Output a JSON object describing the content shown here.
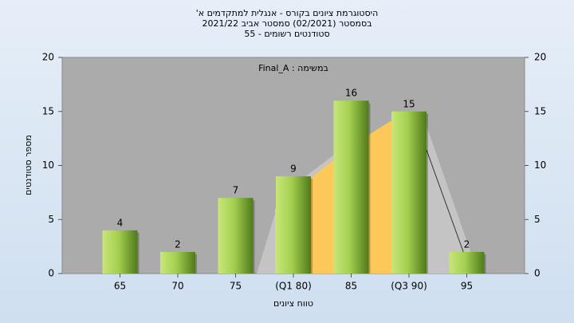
{
  "chart_data": {
    "type": "bar",
    "title": [
      "היסטוגרמת ציונים בקורס - אנגלית למתקדמים א'",
      "בסמסטר (02/2021) סמסטר אביב 2021/22",
      "סטודנטים רשומים - 55"
    ],
    "annotation": "במשימה : Final_A",
    "y_label": "מספר סטודנטים",
    "x_label": "טווח ציונים",
    "categories": [
      "65",
      "70",
      "75",
      "(Q1 80)",
      "85",
      "(Q3 90)",
      "95"
    ],
    "values": [
      4,
      2,
      7,
      9,
      16,
      15,
      2
    ],
    "color": "#9ccc48",
    "ylim": [
      0,
      20
    ],
    "yticks": [
      0,
      5,
      10,
      15,
      20
    ],
    "y2lim": [
      0,
      20
    ],
    "y2ticks": [
      0,
      5,
      10,
      15,
      20
    ]
  }
}
